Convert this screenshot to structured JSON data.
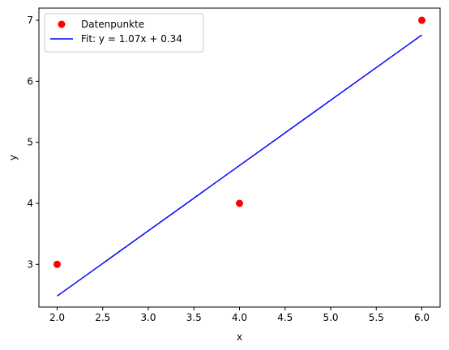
{
  "chart_data": {
    "type": "scatter",
    "title": "",
    "xlabel": "x",
    "ylabel": "y",
    "xlim": [
      1.8,
      6.2
    ],
    "ylim": [
      2.3,
      7.2
    ],
    "xticks": [
      "2.0",
      "2.5",
      "3.0",
      "3.5",
      "4.0",
      "4.5",
      "5.0",
      "5.5",
      "6.0"
    ],
    "yticks": [
      "3",
      "4",
      "5",
      "6",
      "7"
    ],
    "grid": false,
    "legend_position": "top-left",
    "series": [
      {
        "name": "Datenpunkte",
        "kind": "scatter",
        "color": "#ff0000",
        "x": [
          2,
          4,
          6
        ],
        "y": [
          3,
          4,
          7
        ]
      },
      {
        "name": "Fit: y = 1.07x + 0.34",
        "kind": "line",
        "color": "#0000ff",
        "x": [
          2,
          6
        ],
        "y": [
          2.48,
          6.76
        ]
      }
    ]
  }
}
